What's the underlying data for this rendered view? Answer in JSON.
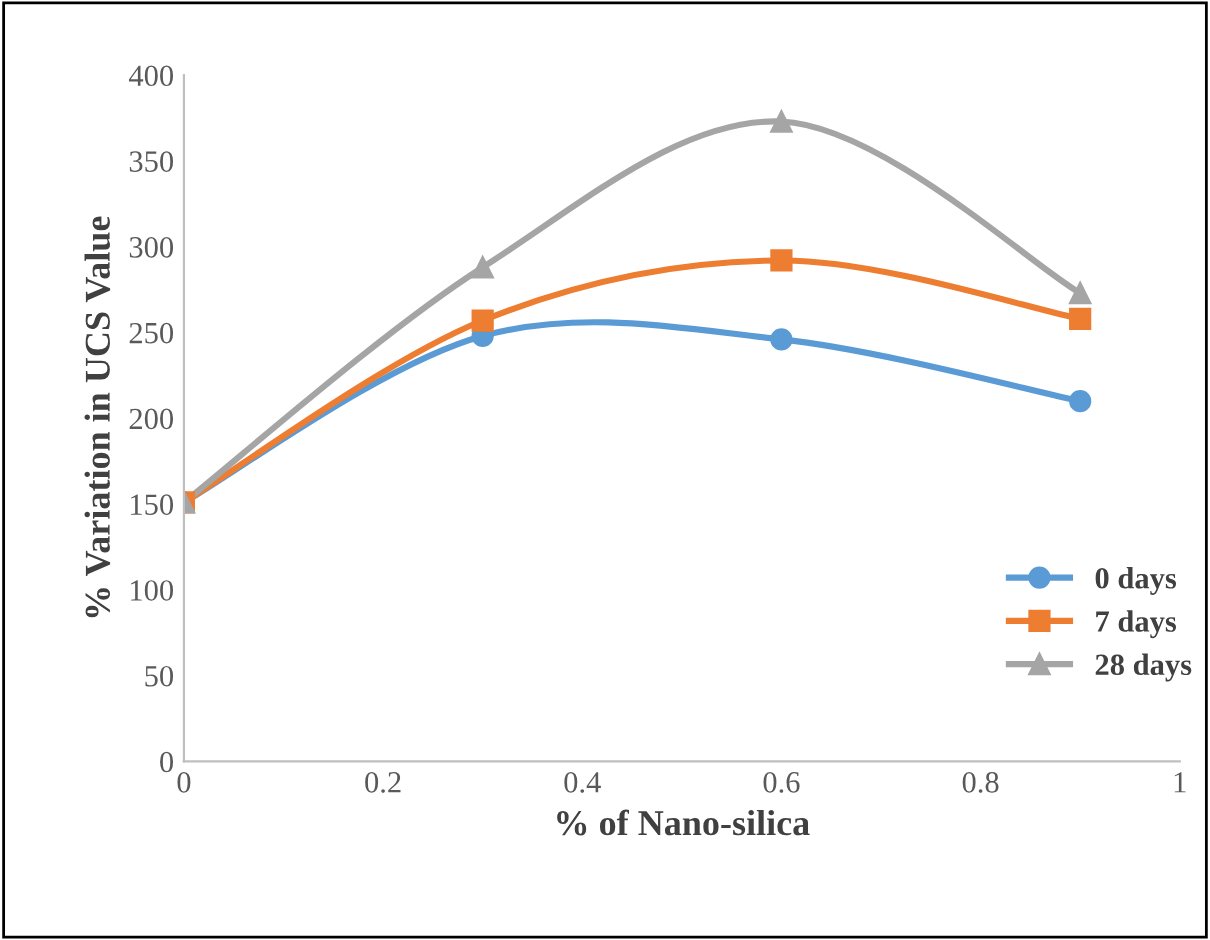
{
  "chart_data": {
    "type": "line",
    "xlabel": "% of Nano-silica",
    "ylabel": "% Variation in UCS Value",
    "x": [
      0,
      0.3,
      0.6,
      0.9
    ],
    "series": [
      {
        "name": "0 days",
        "color": "#5b9bd5",
        "marker": "circle",
        "values": [
          151,
          248,
          246,
          210
        ]
      },
      {
        "name": "7 days",
        "color": "#ed7d31",
        "marker": "square",
        "values": [
          151,
          257,
          292,
          258
        ]
      },
      {
        "name": "28 days",
        "color": "#a5a5a5",
        "marker": "triangle",
        "values": [
          151,
          288,
          373,
          273
        ]
      }
    ],
    "xlim": [
      0,
      1
    ],
    "xticks": [
      0,
      0.2,
      0.4,
      0.6,
      0.8,
      1
    ],
    "ylim": [
      0,
      400
    ],
    "yticks": [
      0,
      50,
      100,
      150,
      200,
      250,
      300,
      350,
      400
    ],
    "grid": false,
    "legend": "right",
    "line_style": "solid"
  }
}
